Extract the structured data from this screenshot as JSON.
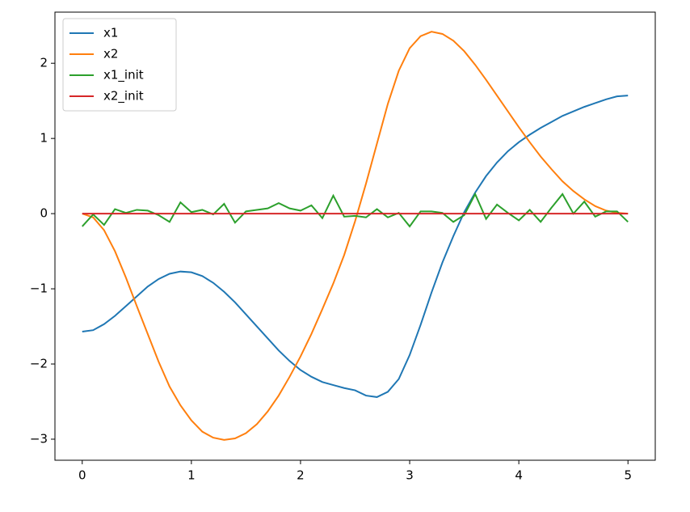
{
  "chart_data": {
    "type": "line",
    "x": [
      0,
      0.1,
      0.2,
      0.3,
      0.4,
      0.5,
      0.6,
      0.7,
      0.8,
      0.9,
      1,
      1.1,
      1.2,
      1.3,
      1.4,
      1.5,
      1.6,
      1.7,
      1.8,
      1.9,
      2,
      2.1,
      2.2,
      2.3,
      2.4,
      2.5,
      2.6,
      2.7,
      2.8,
      2.9,
      3,
      3.1,
      3.2,
      3.3,
      3.4,
      3.5,
      3.6,
      3.7,
      3.8,
      3.9,
      4,
      4.1,
      4.2,
      4.3,
      4.4,
      4.5,
      4.6,
      4.7,
      4.8,
      4.9,
      5
    ],
    "series": [
      {
        "name": "x1",
        "color": "#1f77b4",
        "values": [
          -1.57,
          -1.55,
          -1.47,
          -1.36,
          -1.23,
          -1.1,
          -0.97,
          -0.87,
          -0.8,
          -0.77,
          -0.78,
          -0.83,
          -0.92,
          -1.04,
          -1.18,
          -1.34,
          -1.5,
          -1.66,
          -1.82,
          -1.96,
          -2.08,
          -2.17,
          -2.24,
          -2.28,
          -2.32,
          -2.35,
          -2.42,
          -2.44,
          -2.37,
          -2.2,
          -1.88,
          -1.48,
          -1.05,
          -0.65,
          -0.3,
          0.02,
          0.28,
          0.5,
          0.68,
          0.83,
          0.95,
          1.05,
          1.14,
          1.22,
          1.3,
          1.36,
          1.42,
          1.47,
          1.52,
          1.56,
          1.57
        ]
      },
      {
        "name": "x2",
        "color": "#ff7f0e",
        "values": [
          0,
          -0.05,
          -0.22,
          -0.5,
          -0.85,
          -1.23,
          -1.6,
          -1.97,
          -2.3,
          -2.55,
          -2.75,
          -2.9,
          -2.98,
          -3.01,
          -2.99,
          -2.92,
          -2.8,
          -2.63,
          -2.42,
          -2.17,
          -1.9,
          -1.6,
          -1.27,
          -0.93,
          -0.55,
          -0.1,
          0.4,
          0.93,
          1.46,
          1.9,
          2.2,
          2.36,
          2.42,
          2.39,
          2.3,
          2.16,
          1.98,
          1.78,
          1.57,
          1.36,
          1.15,
          0.95,
          0.76,
          0.59,
          0.43,
          0.3,
          0.19,
          0.1,
          0.04,
          0.01,
          0
        ]
      },
      {
        "name": "x1_init",
        "color": "#2ca02c",
        "values": [
          -0.17,
          -0.01,
          -0.15,
          0.06,
          0.01,
          0.05,
          0.04,
          -0.02,
          -0.11,
          0.15,
          0.02,
          0.05,
          -0.01,
          0.13,
          -0.12,
          0.03,
          0.05,
          0.07,
          0.14,
          0.07,
          0.04,
          0.11,
          -0.06,
          0.24,
          -0.04,
          -0.03,
          -0.05,
          0.06,
          -0.05,
          0.01,
          -0.17,
          0.03,
          0.03,
          0.01,
          -0.11,
          -0.02,
          0.26,
          -0.07,
          0.12,
          0.01,
          -0.09,
          0.05,
          -0.11,
          0.08,
          0.26,
          0,
          0.16,
          -0.04,
          0.03,
          0.03,
          -0.11
        ]
      },
      {
        "name": "x2_init",
        "color": "#d62728",
        "values": [
          0,
          0,
          0,
          0,
          0,
          0,
          0,
          0,
          0,
          0,
          0,
          0,
          0,
          0,
          0,
          0,
          0,
          0,
          0,
          0,
          0,
          0,
          0,
          0,
          0,
          0,
          0,
          0,
          0,
          0,
          0,
          0,
          0,
          0,
          0,
          0,
          0,
          0,
          0,
          0,
          0,
          0,
          0,
          0,
          0,
          0,
          0,
          0,
          0,
          0,
          0
        ]
      }
    ],
    "xlim": [
      -0.25,
      5.25
    ],
    "xticks": [
      0,
      1,
      2,
      3,
      4,
      5
    ],
    "ylim": [
      -3.28,
      2.68
    ],
    "yticks": [
      {
        "value": -3,
        "label": "−3"
      },
      {
        "value": -2,
        "label": "−2"
      },
      {
        "value": -1,
        "label": "−1"
      },
      0,
      1,
      2
    ],
    "legend": "upper left"
  }
}
